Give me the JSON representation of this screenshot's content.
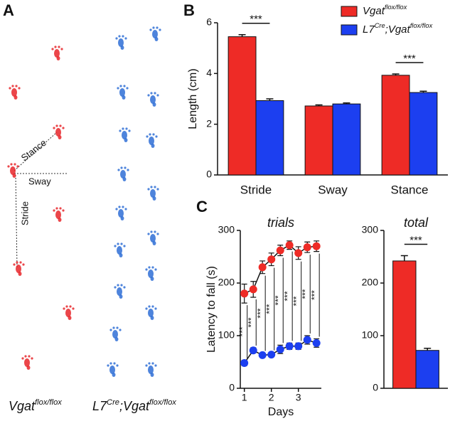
{
  "panel_a": {
    "label": "A",
    "annotations": [
      "Stance",
      "Sway",
      "Stride"
    ],
    "captions": [
      [
        "Vgat",
        "flox/flox"
      ],
      [
        "L7",
        "Cre",
        ";Vgat",
        "flox/flox"
      ]
    ]
  },
  "chart_data": [
    {
      "type": "bar",
      "panel_label": "B",
      "y_label": "Length (cm)",
      "categories": [
        "Stride",
        "Sway",
        "Stance"
      ],
      "series": [
        {
          "name": [
            "Vgat",
            "flox/flox"
          ],
          "color": "#ee2b26",
          "values": [
            5.45,
            2.72,
            3.93
          ],
          "errors": [
            0.08,
            0.04,
            0.05
          ]
        },
        {
          "name": [
            "L7",
            "Cre",
            ";Vgat",
            "flox/flox"
          ],
          "color": "#1c3ff0",
          "values": [
            2.93,
            2.8,
            3.25
          ],
          "errors": [
            0.07,
            0.04,
            0.05
          ]
        }
      ],
      "significance_labels": [
        "***",
        null,
        "***"
      ],
      "ylim": [
        0,
        6
      ],
      "yticks": [
        0,
        2,
        4,
        6
      ],
      "legend": "upper right"
    },
    {
      "type": "line",
      "title": "trials",
      "panel_label": "C",
      "x_label": "Days",
      "y_label": "Latency to fall (s)",
      "x": [
        1,
        1.33,
        1.67,
        2,
        2.33,
        2.67,
        3,
        3.33,
        3.67
      ],
      "series": [
        {
          "name": [
            "Vgat",
            "flox/flox"
          ],
          "color": "#ee2b26",
          "values": [
            180,
            188,
            230,
            245,
            262,
            272,
            257,
            268,
            270
          ],
          "errors": [
            18,
            15,
            12,
            12,
            10,
            8,
            12,
            10,
            10
          ]
        },
        {
          "name": [
            "L7",
            "Cre",
            ";Vgat",
            "flox/flox"
          ],
          "color": "#1c3ff0",
          "values": [
            48,
            72,
            63,
            64,
            74,
            80,
            80,
            92,
            86
          ],
          "errors": [
            5,
            5,
            4,
            4,
            8,
            6,
            6,
            8,
            8
          ]
        }
      ],
      "significance_labels": [
        "***",
        "***",
        "***",
        "***",
        "***",
        "***",
        "***",
        "***",
        "***"
      ],
      "xlim": [
        0.85,
        3.85
      ],
      "xticks": [
        1,
        2,
        3
      ],
      "ylim": [
        0,
        300
      ],
      "yticks": [
        0,
        100,
        200,
        300
      ]
    },
    {
      "type": "bar",
      "title": "total",
      "series": [
        {
          "name": [
            "Vgat",
            "flox/flox"
          ],
          "color": "#ee2b26",
          "values": [
            242
          ],
          "errors": [
            10
          ]
        },
        {
          "name": [
            "L7",
            "Cre",
            ";Vgat",
            "flox/flox"
          ],
          "color": "#1c3ff0",
          "values": [
            72
          ],
          "errors": [
            4
          ]
        }
      ],
      "significance_labels": [
        "***"
      ],
      "ylim": [
        0,
        300
      ],
      "yticks": [
        0,
        100,
        200,
        300
      ]
    }
  ]
}
